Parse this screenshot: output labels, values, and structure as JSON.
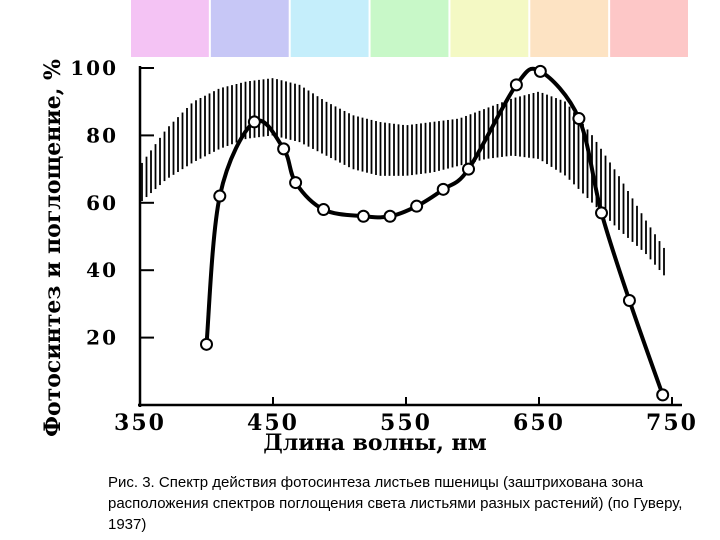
{
  "spectrum_colors": [
    "#f4c3f4",
    "#c7c7f6",
    "#c5eefb",
    "#c8f8c8",
    "#f4f9c4",
    "#fde3c3",
    "#fdc7c7"
  ],
  "caption": "Рис. 3. Спектр действия фотосинтеза листьев пшеницы (заштрихована зона расположения спектров поглощения света листьями разных растений) (по Гуверу, 1937)",
  "chart_data": {
    "type": "line",
    "xlabel": "Длина волны, нм",
    "ylabel": "Фотосинтез и поглощение, %",
    "xlim": [
      350,
      750
    ],
    "ylim": [
      0,
      100
    ],
    "x_ticks": [
      350,
      450,
      550,
      650,
      750
    ],
    "y_ticks": [
      20,
      40,
      60,
      80,
      100
    ],
    "series": [
      {
        "values_x": [
          400,
          410,
          436,
          458,
          467,
          488,
          518,
          538,
          558,
          578,
          597,
          633,
          651,
          680,
          697,
          718,
          743
        ],
        "values_y": [
          18,
          62,
          84,
          76,
          66,
          58,
          56,
          56,
          59,
          64,
          70,
          95,
          99,
          85,
          57,
          31,
          3
        ],
        "marker": "circle"
      }
    ],
    "band": {
      "x": [
        350,
        370,
        390,
        410,
        430,
        450,
        470,
        490,
        510,
        530,
        550,
        570,
        590,
        610,
        630,
        650,
        670,
        690,
        710,
        730,
        745
      ],
      "lower": [
        60,
        67,
        72,
        76,
        79,
        80,
        78,
        74,
        70,
        68,
        68,
        69,
        71,
        73,
        74,
        73,
        68,
        60,
        52,
        45,
        38
      ],
      "upper": [
        71,
        82,
        90,
        94,
        96,
        97,
        95,
        90,
        86,
        84,
        83,
        84,
        85,
        88,
        91,
        93,
        90,
        80,
        68,
        55,
        46
      ]
    }
  }
}
